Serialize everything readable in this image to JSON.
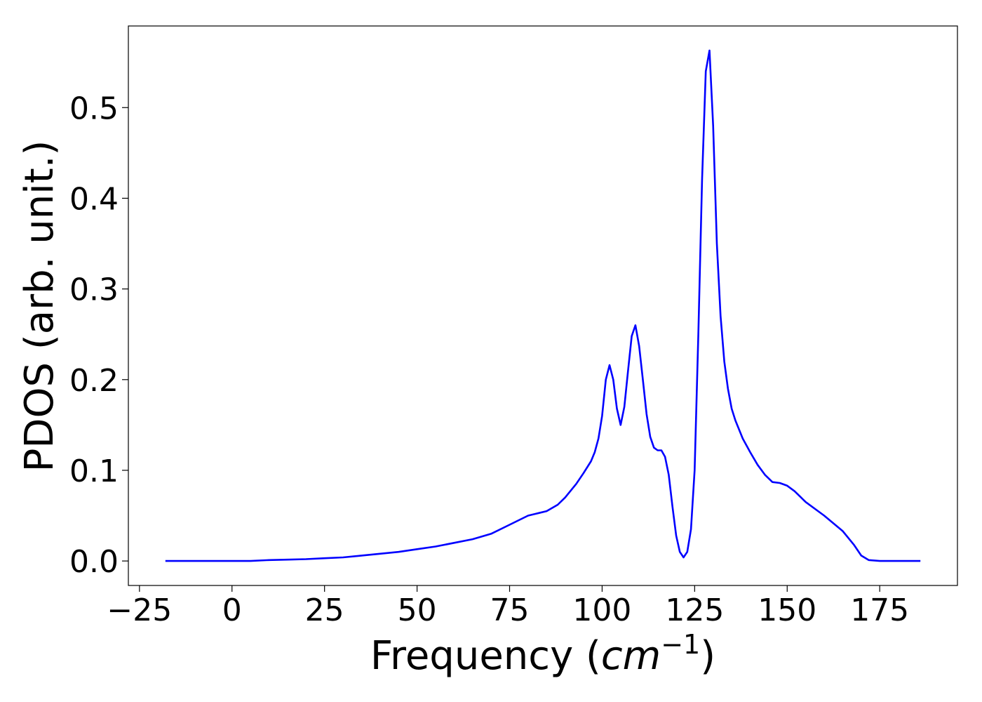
{
  "chart_data": {
    "type": "line",
    "title": "",
    "xlabel_prefix": "Frequency (",
    "xlabel_italic": "cm",
    "xlabel_sup": "−1",
    "xlabel_suffix": ")",
    "ylabel": "PDOS (arb. unit.)",
    "xlim": [
      -28,
      196
    ],
    "ylim": [
      -0.027,
      0.59
    ],
    "xticks": [
      -25,
      0,
      25,
      50,
      75,
      100,
      125,
      150,
      175
    ],
    "xtick_labels": [
      "−25",
      "0",
      "25",
      "50",
      "75",
      "100",
      "125",
      "150",
      "175"
    ],
    "yticks": [
      0.0,
      0.1,
      0.2,
      0.3,
      0.4,
      0.5
    ],
    "ytick_labels": [
      "0.0",
      "0.1",
      "0.2",
      "0.3",
      "0.4",
      "0.5"
    ],
    "grid": false,
    "series": [
      {
        "color": "#0000ff",
        "x": [
          -18,
          -10,
          0,
          5,
          10,
          15,
          20,
          25,
          30,
          35,
          40,
          45,
          50,
          55,
          60,
          65,
          70,
          75,
          80,
          83,
          85,
          88,
          90,
          93,
          95,
          97,
          98,
          99,
          100,
          101,
          102,
          103,
          104,
          105,
          106,
          107,
          108,
          109,
          110,
          111,
          112,
          113,
          114,
          115,
          116,
          117,
          118,
          119,
          120,
          121,
          122,
          123,
          124,
          125,
          126,
          127,
          128,
          129,
          130,
          131,
          132,
          133,
          134,
          135,
          136,
          138,
          140,
          142,
          144,
          146,
          148,
          150,
          152,
          155,
          160,
          165,
          168,
          170,
          172,
          175,
          180,
          186
        ],
        "y": [
          0.0,
          0.0,
          0.0,
          0.0,
          0.001,
          0.0015,
          0.002,
          0.003,
          0.004,
          0.006,
          0.008,
          0.01,
          0.013,
          0.016,
          0.02,
          0.024,
          0.03,
          0.04,
          0.05,
          0.053,
          0.055,
          0.062,
          0.07,
          0.085,
          0.097,
          0.11,
          0.12,
          0.135,
          0.16,
          0.2,
          0.216,
          0.2,
          0.168,
          0.15,
          0.17,
          0.21,
          0.248,
          0.26,
          0.237,
          0.2,
          0.162,
          0.137,
          0.125,
          0.122,
          0.122,
          0.115,
          0.095,
          0.06,
          0.028,
          0.01,
          0.004,
          0.01,
          0.035,
          0.1,
          0.25,
          0.42,
          0.54,
          0.563,
          0.48,
          0.35,
          0.27,
          0.22,
          0.19,
          0.168,
          0.155,
          0.135,
          0.12,
          0.106,
          0.095,
          0.087,
          0.086,
          0.083,
          0.077,
          0.065,
          0.05,
          0.033,
          0.018,
          0.006,
          0.001,
          0.0,
          0.0,
          0.0
        ]
      }
    ]
  }
}
